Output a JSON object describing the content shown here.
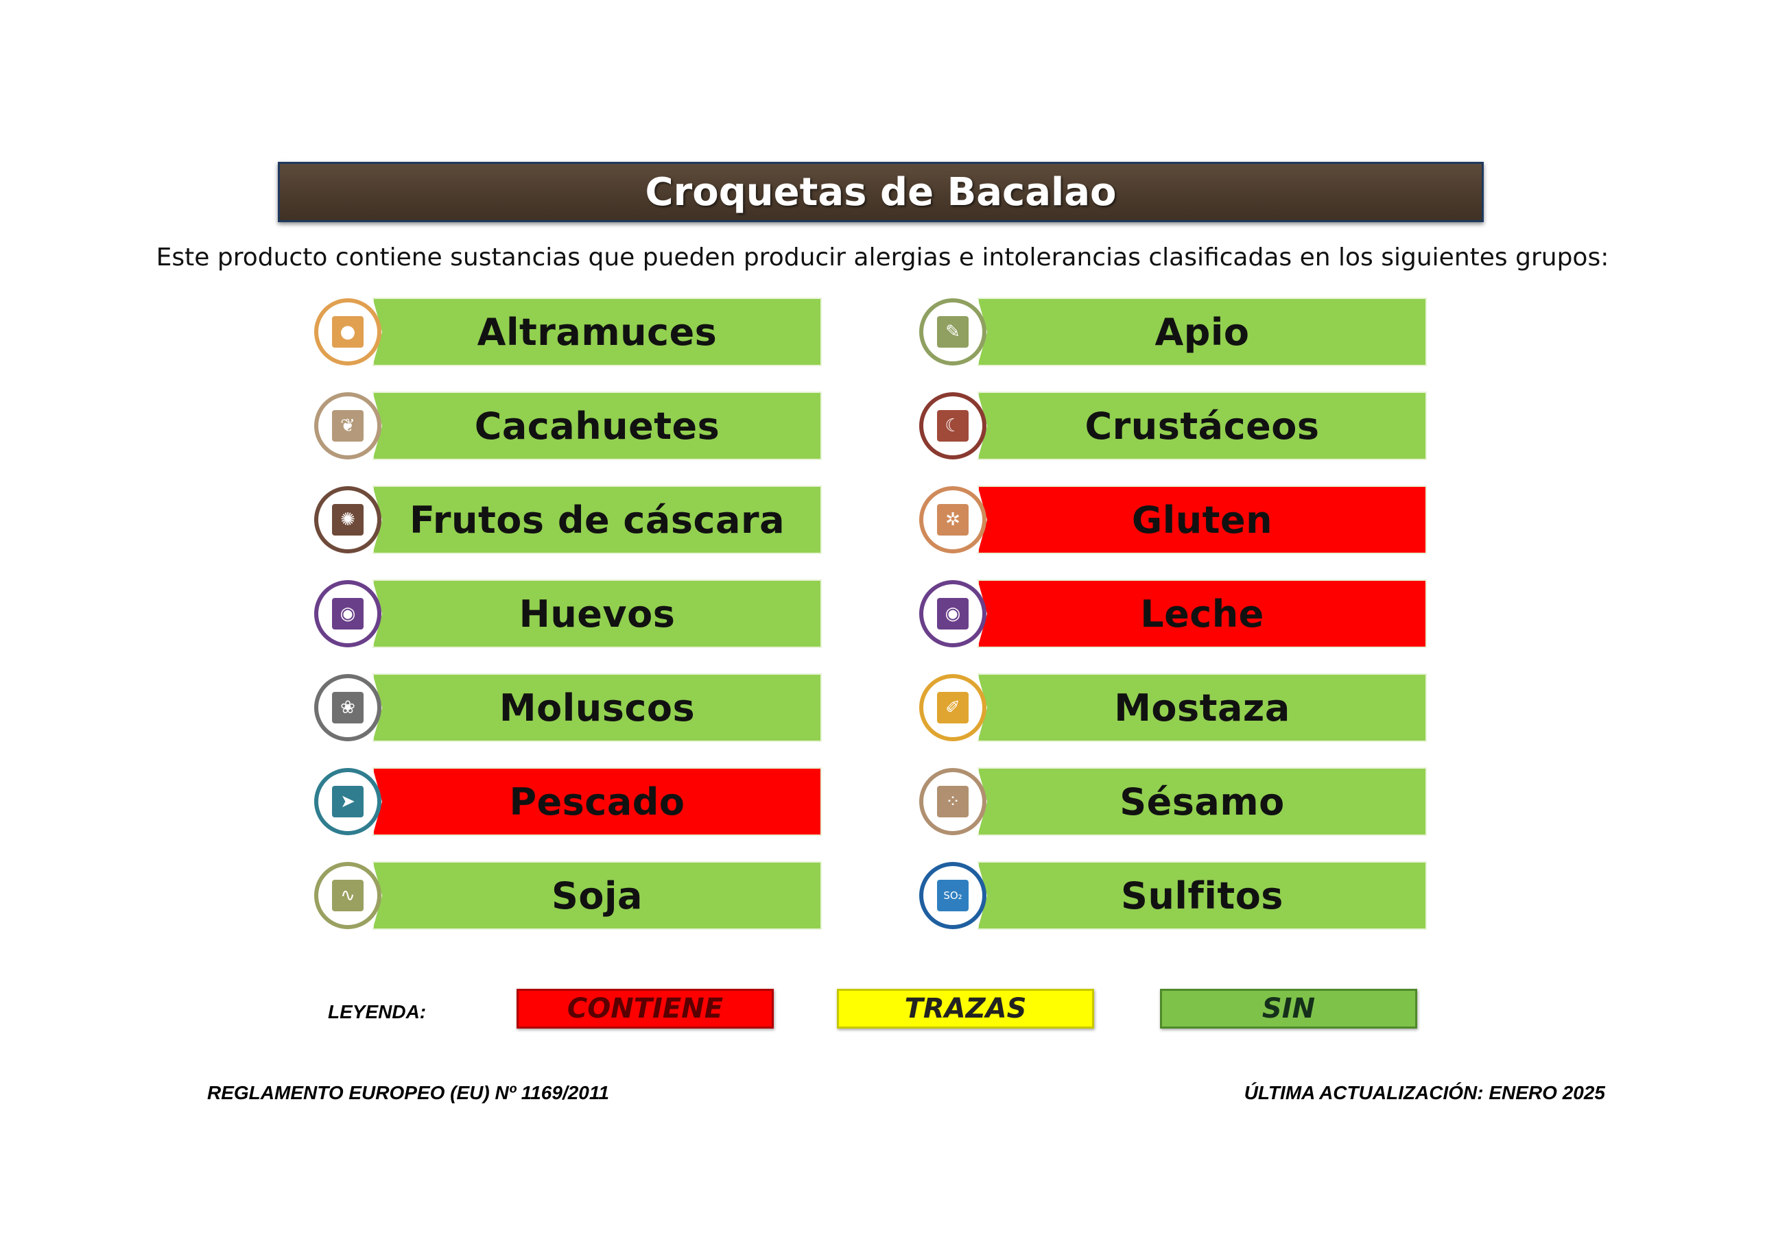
{
  "title": "Croquetas de Bacalao",
  "intro": "Este producto contiene sustancias que pueden producir alergias e intolerancias clasificadas en los siguientes grupos:",
  "colors": {
    "contiene": "#ff0000",
    "trazas": "#ffff00",
    "sin": "#92d050"
  },
  "allergens_left": [
    {
      "label": "Altramuces",
      "status": "sin",
      "icon": "lupin-icon",
      "ring": "#e0a050",
      "glyph": "●",
      "glyph_bg": "#e0a050"
    },
    {
      "label": "Cacahuetes",
      "status": "sin",
      "icon": "peanut-icon",
      "ring": "#b49a7a",
      "glyph": "❦",
      "glyph_bg": "#b49a7a"
    },
    {
      "label": "Frutos de cáscara",
      "status": "sin",
      "icon": "nut-icon",
      "ring": "#6e4a3a",
      "glyph": "✺",
      "glyph_bg": "#6e4a3a"
    },
    {
      "label": "Huevos",
      "status": "sin",
      "icon": "egg-icon",
      "ring": "#6a3f8a",
      "glyph": "◉",
      "glyph_bg": "#6a3f8a"
    },
    {
      "label": "Moluscos",
      "status": "sin",
      "icon": "shell-icon",
      "ring": "#707070",
      "glyph": "❀",
      "glyph_bg": "#707070"
    },
    {
      "label": "Pescado",
      "status": "contiene",
      "icon": "fish-icon",
      "ring": "#2f7d8f",
      "glyph": "➤",
      "glyph_bg": "#2f7d8f"
    },
    {
      "label": "Soja",
      "status": "sin",
      "icon": "soy-icon",
      "ring": "#9aa060",
      "glyph": "∿",
      "glyph_bg": "#9aa060"
    }
  ],
  "allergens_right": [
    {
      "label": "Apio",
      "status": "sin",
      "icon": "celery-icon",
      "ring": "#8fa060",
      "glyph": "✎",
      "glyph_bg": "#8fa060"
    },
    {
      "label": "Crustáceos",
      "status": "sin",
      "icon": "shrimp-icon",
      "ring": "#8a3a30",
      "glyph": "☾",
      "glyph_bg": "#a04a3a"
    },
    {
      "label": "Gluten",
      "status": "contiene",
      "icon": "wheat-icon",
      "ring": "#d08a5a",
      "glyph": "✲",
      "glyph_bg": "#d08a5a"
    },
    {
      "label": "Leche",
      "status": "contiene",
      "icon": "milk-icon",
      "ring": "#6a3f8a",
      "glyph": "◉",
      "glyph_bg": "#6a3f8a"
    },
    {
      "label": "Mostaza",
      "status": "sin",
      "icon": "mustard-icon",
      "ring": "#e0a530",
      "glyph": "✐",
      "glyph_bg": "#e0a530"
    },
    {
      "label": "Sésamo",
      "status": "sin",
      "icon": "sesame-icon",
      "ring": "#b09070",
      "glyph": "⁘",
      "glyph_bg": "#b09070"
    },
    {
      "label": "Sulfitos",
      "status": "sin",
      "icon": "sulfite-icon",
      "ring": "#1f5fa0",
      "glyph": "SO₂",
      "glyph_bg": "#2f7fc0"
    }
  ],
  "legend": {
    "label": "LEYENDA:",
    "contiene": "CONTIENE",
    "trazas": "TRAZAS",
    "sin": "SIN"
  },
  "footer": {
    "left": "REGLAMENTO EUROPEO (EU) Nº 1169/2011",
    "right": "ÚLTIMA ACTUALIZACIÓN: ENERO 2025"
  }
}
